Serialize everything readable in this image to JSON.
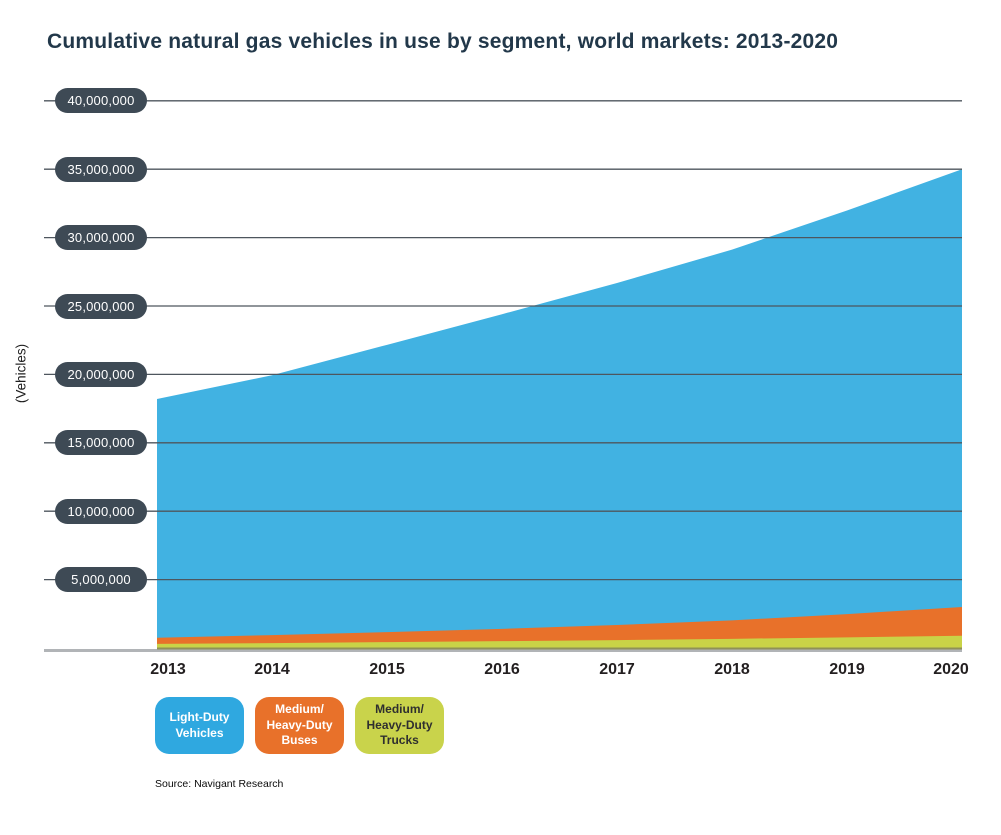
{
  "title": "Cumulative natural gas vehicles in use by segment, world markets: 2013-2020",
  "y_axis_title": "(Vehicles)",
  "source_note": "Source: Navigant Research",
  "colors": {
    "light_duty_area": "#41B2E2",
    "buses_area": "#E8712A",
    "trucks_area": "#C9D347",
    "tick_pill_bg": "#3E4A55",
    "tick_pill_text": "#FFFFFF",
    "gridline": "#4E565E",
    "baseline_gray": "#B1B4B7",
    "area_bottom_edge": "#8F9157",
    "title_text": "#22384A",
    "x_label_text": "#231F20",
    "legend_trucks_text": "#2F2F2F"
  },
  "legend": [
    {
      "label_lines": [
        "Light-Duty",
        "Vehicles"
      ],
      "color": "#2FA8E0",
      "text_color": "#FFFFFF",
      "series": "Light-Duty Vehicles"
    },
    {
      "label_lines": [
        "Medium/",
        "Heavy-Duty",
        "Buses"
      ],
      "color": "#E8712A",
      "text_color": "#FFFFFF",
      "series": "Medium/Heavy-Duty Buses"
    },
    {
      "label_lines": [
        "Medium/",
        "Heavy-Duty",
        "Trucks"
      ],
      "color": "#C9D34B",
      "text_color": "#2F2F2F",
      "series": "Medium/Heavy-Duty Trucks"
    }
  ],
  "chart_data": {
    "type": "area",
    "stacked": true,
    "title": "Cumulative natural gas vehicles in use by segment, world markets: 2013-2020",
    "xlabel": "",
    "ylabel": "(Vehicles)",
    "x": [
      2013,
      2014,
      2015,
      2016,
      2017,
      2018,
      2019,
      2020
    ],
    "ylim": [
      0,
      40000000
    ],
    "grid": true,
    "legend_position": "bottom",
    "stacking_bottom_to_top": [
      "Medium/Heavy-Duty Trucks",
      "Medium/Heavy-Duty Buses",
      "Light-Duty Vehicles"
    ],
    "series": [
      {
        "name": "Light-Duty Vehicles",
        "color": "#41B2E2",
        "values": [
          17450000,
          19000000,
          21000000,
          23000000,
          25000000,
          27100000,
          29500000,
          32000000
        ]
      },
      {
        "name": "Medium/Heavy-Duty Buses",
        "color": "#E8712A",
        "values": [
          450000,
          580000,
          730000,
          900000,
          1100000,
          1350000,
          1700000,
          2100000
        ]
      },
      {
        "name": "Medium/Heavy-Duty Trucks",
        "color": "#C9D347",
        "values": [
          300000,
          360000,
          430000,
          500000,
          580000,
          670000,
          780000,
          900000
        ]
      }
    ],
    "totals": [
      18200000,
      19940000,
      22160000,
      24400000,
      26680000,
      29120000,
      31980000,
      35000000
    ],
    "y_ticks": [
      {
        "value": 40000000,
        "label": "40,000,000"
      },
      {
        "value": 35000000,
        "label": "35,000,000"
      },
      {
        "value": 30000000,
        "label": "30,000,000"
      },
      {
        "value": 25000000,
        "label": "25,000,000"
      },
      {
        "value": 20000000,
        "label": "20,000,000"
      },
      {
        "value": 15000000,
        "label": "15,000,000"
      },
      {
        "value": 10000000,
        "label": "10,000,000"
      },
      {
        "value": 5000000,
        "label": "5,000,000"
      }
    ]
  }
}
